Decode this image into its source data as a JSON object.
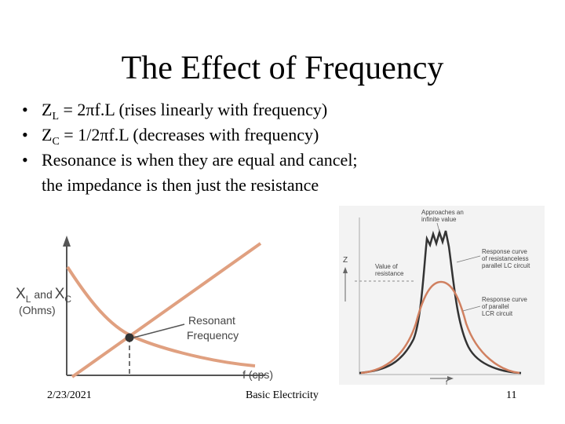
{
  "slide": {
    "title": "The Effect of Frequency",
    "bullets": [
      {
        "pre": "Z",
        "sub": "L",
        "post": " = 2πf.L (rises linearly with frequency)"
      },
      {
        "pre": "Z",
        "sub": "C",
        "post": " = 1/2πf.L (decreases with frequency)"
      },
      {
        "pre": "",
        "sub": "",
        "post": "Resonance is when they are equal and cancel;"
      },
      {
        "pre": "",
        "sub": "",
        "post": "the impedance is then just the resistance"
      }
    ],
    "bullet_symbol": "•"
  },
  "left_figure": {
    "y_label_main": "X",
    "y_label_sub_l": "L",
    "y_label_and": "and",
    "y_label_x2": "X",
    "y_label_sub_c": "C",
    "y_label_unit": "(Ohms)",
    "x_label": "f (cps)",
    "annotation_line1": "Resonant",
    "annotation_line2": "Frequency",
    "colors": {
      "curve": "#e0a080",
      "axis": "#555555",
      "point": "#333333"
    }
  },
  "right_figure": {
    "y_label": "Z",
    "x_label": "f",
    "peak_note_line1": "Approaches an",
    "peak_note_line2": "infinite value",
    "value_note_line1": "Value of",
    "value_note_line2": "resistance",
    "outer_note_line1": "Response curve",
    "outer_note_line2": "of resistanceless",
    "outer_note_line3": "parallel LC circuit",
    "inner_note_line1": "Response curve",
    "inner_note_line2": "of parallel",
    "inner_note_line3": "LCR circuit",
    "colors": {
      "outer": "#333333",
      "inner": "#d08060",
      "background": "#f3f3f3"
    }
  },
  "footer": {
    "date": "2/23/2021",
    "center": "Basic Electricity",
    "page": "11"
  }
}
